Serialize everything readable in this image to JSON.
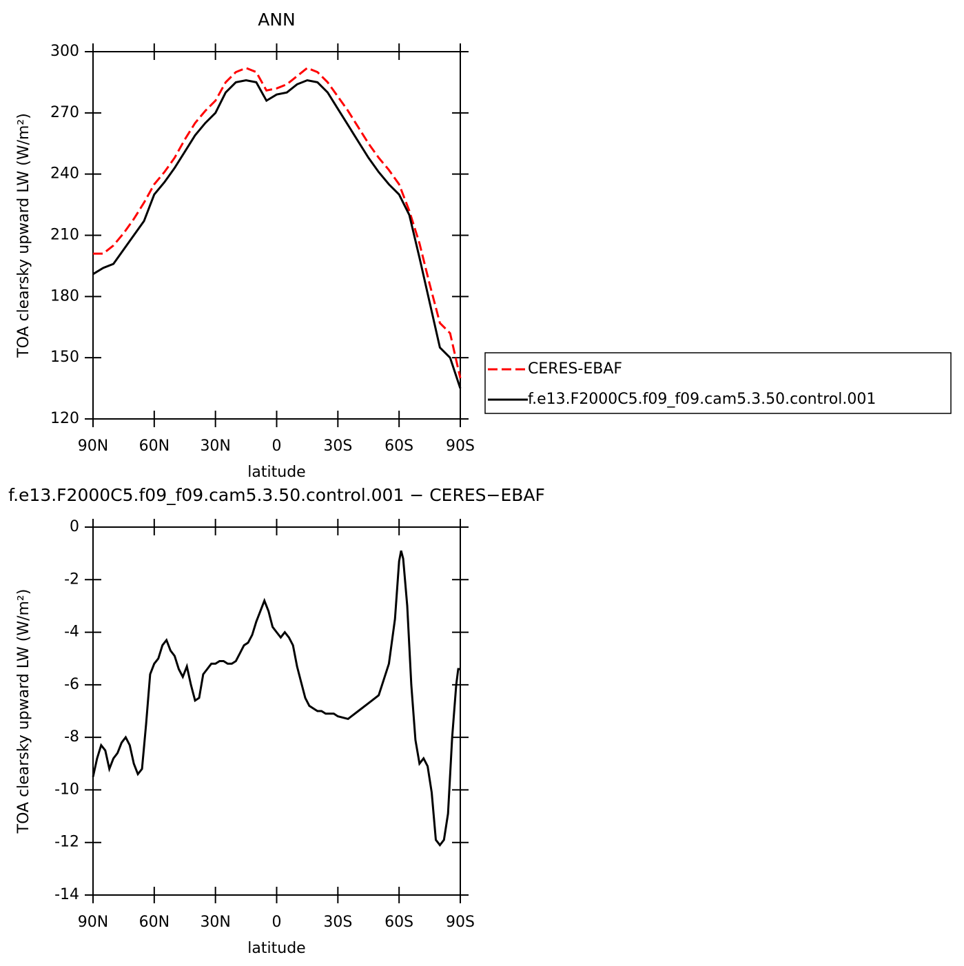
{
  "chart_data": [
    {
      "type": "line",
      "title": "ANN",
      "xlabel": "latitude",
      "ylabel": "TOA clearsky upward LW (W/m²)",
      "x": [
        90,
        85,
        80,
        75,
        70,
        65,
        60,
        55,
        50,
        45,
        40,
        35,
        30,
        25,
        20,
        15,
        10,
        5,
        0,
        -5,
        -10,
        -15,
        -20,
        -25,
        -30,
        -35,
        -40,
        -45,
        -50,
        -55,
        -60,
        -65,
        -70,
        -75,
        -80,
        -85,
        -90
      ],
      "series": [
        {
          "name": "CERES-EBAF",
          "color": "#ff0000",
          "line_style": "dashed",
          "values": [
            201,
            201,
            205,
            211,
            218,
            226,
            235,
            241,
            248,
            257,
            265,
            271,
            276,
            285,
            290,
            292,
            290,
            281,
            282,
            284,
            288,
            292,
            290,
            285,
            278,
            271,
            263,
            255,
            248,
            242,
            235,
            222,
            206,
            186,
            167,
            162,
            140
          ]
        },
        {
          "name": "f.e13.F2000C5.f09_f09.cam5.3.50.control.001",
          "color": "#000000",
          "line_style": "solid",
          "values": [
            191,
            194,
            196,
            203,
            210,
            217,
            230,
            236,
            243,
            251,
            259,
            265,
            270,
            280,
            285,
            286,
            285,
            276,
            279,
            280,
            284,
            286,
            285,
            280,
            272,
            264,
            256,
            248,
            241,
            235,
            230,
            220,
            199,
            177,
            155,
            150,
            135
          ]
        }
      ],
      "xlim": [
        90,
        -90
      ],
      "xticks": [
        {
          "value": 90,
          "label": "90N"
        },
        {
          "value": 60,
          "label": "60N"
        },
        {
          "value": 30,
          "label": "30N"
        },
        0,
        {
          "value": -30,
          "label": "30S"
        },
        {
          "value": -60,
          "label": "60S"
        },
        {
          "value": -90,
          "label": "90S"
        }
      ],
      "ylim": [
        120,
        300
      ],
      "yticks": [
        120,
        150,
        180,
        210,
        240,
        270,
        300
      ],
      "legend": "right"
    },
    {
      "type": "line",
      "title": "f.e13.F2000C5.f09_f09.cam5.3.50.control.001 − CERES−EBAF",
      "xlabel": "latitude",
      "ylabel": "TOA clearsky upward LW (W/m²)",
      "x": [
        90,
        88,
        86,
        84,
        82,
        80,
        78,
        76,
        74,
        72,
        70,
        68,
        66,
        64,
        62,
        60,
        58,
        56,
        54,
        52,
        50,
        48,
        46,
        44,
        42,
        40,
        38,
        36,
        34,
        32,
        30,
        28,
        26,
        24,
        22,
        20,
        18,
        16,
        14,
        12,
        10,
        8,
        6,
        4,
        2,
        0,
        -2,
        -4,
        -6,
        -8,
        -10,
        -12,
        -14,
        -16,
        -18,
        -20,
        -22,
        -24,
        -26,
        -28,
        -30,
        -35,
        -40,
        -45,
        -50,
        -55,
        -58,
        -60,
        -61,
        -62,
        -64,
        -66,
        -68,
        -70,
        -72,
        -74,
        -76,
        -78,
        -80,
        -82,
        -84,
        -86,
        -88,
        -89,
        -90
      ],
      "series": [
        {
          "name": "f.e13.F2000C5.f09_f09.cam5.3.50.control.001 − CERES−EBAF",
          "color": "#000000",
          "line_style": "solid",
          "values": [
            -9.5,
            -8.8,
            -8.3,
            -8.5,
            -9.2,
            -8.8,
            -8.6,
            -8.2,
            -8.0,
            -8.3,
            -9.0,
            -9.4,
            -9.2,
            -7.5,
            -5.6,
            -5.2,
            -5.0,
            -4.5,
            -4.3,
            -4.7,
            -4.9,
            -5.4,
            -5.7,
            -5.3,
            -6.0,
            -6.6,
            -6.5,
            -5.6,
            -5.4,
            -5.2,
            -5.2,
            -5.1,
            -5.1,
            -5.2,
            -5.2,
            -5.1,
            -4.8,
            -4.5,
            -4.4,
            -4.1,
            -3.6,
            -3.2,
            -2.8,
            -3.2,
            -3.8,
            -4.0,
            -4.2,
            -4.0,
            -4.2,
            -4.5,
            -5.3,
            -5.9,
            -6.5,
            -6.8,
            -6.9,
            -7.0,
            -7.0,
            -7.1,
            -7.1,
            -7.1,
            -7.2,
            -7.3,
            -7.0,
            -6.7,
            -6.4,
            -5.2,
            -3.5,
            -1.3,
            -0.9,
            -1.2,
            -3.0,
            -6.0,
            -8.1,
            -9.0,
            -8.8,
            -9.1,
            -10.1,
            -11.9,
            -12.1,
            -11.9,
            -10.9,
            -8.0,
            -6.0,
            -5.4,
            -5.4
          ]
        }
      ],
      "xlim": [
        90,
        -90
      ],
      "xticks": [
        {
          "value": 90,
          "label": "90N"
        },
        {
          "value": 60,
          "label": "60N"
        },
        {
          "value": 30,
          "label": "30N"
        },
        0,
        {
          "value": -30,
          "label": "30S"
        },
        {
          "value": -60,
          "label": "60S"
        },
        {
          "value": -90,
          "label": "90S"
        }
      ],
      "ylim": [
        -14,
        0
      ],
      "yticks": [
        -14,
        -12,
        -10,
        -8,
        -6,
        -4,
        -2,
        0
      ]
    }
  ]
}
